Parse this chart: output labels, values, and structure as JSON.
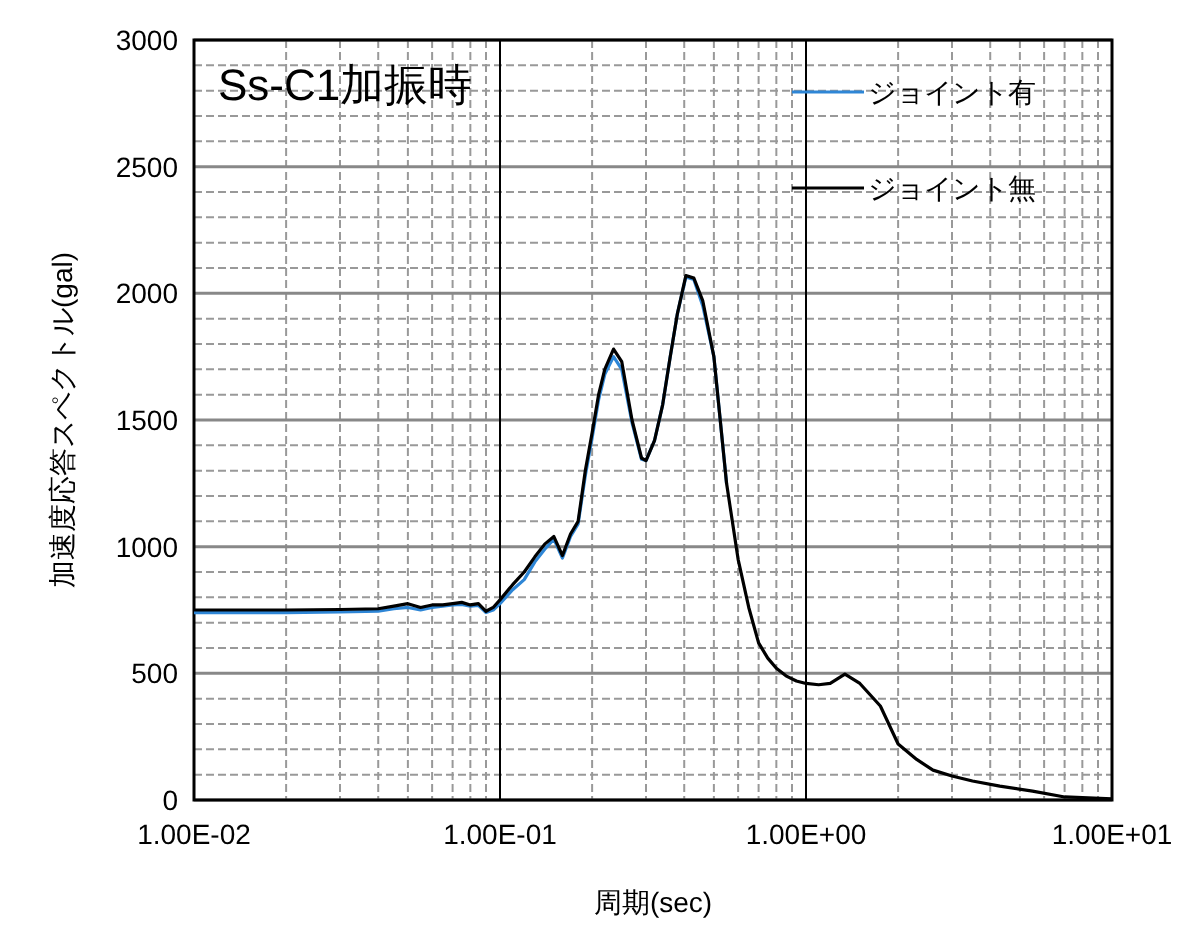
{
  "chart_data": {
    "type": "line",
    "title": "Ss-C1加振時",
    "xlabel": "周期(sec)",
    "ylabel": "加速度応答スペクトル(gal)",
    "log": "x",
    "grid": true,
    "legend": "top right",
    "xlim": [
      0.01,
      10
    ],
    "xticks": [
      {
        "value": 0.01,
        "label": "1.00E-02"
      },
      {
        "value": 0.1,
        "label": "1.00E-01"
      },
      {
        "value": 1,
        "label": "1.00E+00"
      },
      {
        "value": 10,
        "label": "1.00E+01"
      }
    ],
    "ylim": [
      0,
      3000
    ],
    "yticks": [
      0,
      500,
      1000,
      1500,
      2000,
      2500,
      3000
    ],
    "x": [
      0.01,
      0.02,
      0.03,
      0.04,
      0.045,
      0.05,
      0.055,
      0.06,
      0.065,
      0.07,
      0.075,
      0.08,
      0.085,
      0.09,
      0.095,
      0.1,
      0.11,
      0.12,
      0.13,
      0.14,
      0.15,
      0.16,
      0.17,
      0.18,
      0.19,
      0.2,
      0.21,
      0.22,
      0.235,
      0.25,
      0.27,
      0.29,
      0.3,
      0.32,
      0.34,
      0.36,
      0.38,
      0.405,
      0.43,
      0.46,
      0.5,
      0.55,
      0.6,
      0.65,
      0.7,
      0.75,
      0.8,
      0.86,
      0.93,
      1.0,
      1.1,
      1.2,
      1.34,
      1.5,
      1.75,
      2.0,
      2.3,
      2.6,
      3.0,
      3.5,
      4.3,
      5.5,
      7.0,
      10.0
    ],
    "series": [
      {
        "name": "ジョイント有",
        "color": "#2e86d6",
        "values": [
          740,
          740,
          742,
          745,
          755,
          760,
          750,
          760,
          765,
          770,
          772,
          765,
          768,
          740,
          750,
          775,
          830,
          870,
          940,
          990,
          1030,
          955,
          1040,
          1090,
          1280,
          1430,
          1580,
          1680,
          1750,
          1700,
          1490,
          1345,
          1340,
          1420,
          1560,
          1750,
          1920,
          2065,
          2055,
          1950,
          1750,
          1250,
          null,
          null,
          null,
          null,
          null,
          null,
          null,
          null,
          null,
          null,
          null,
          null,
          null,
          null,
          null,
          null,
          null,
          null,
          null,
          null,
          null,
          null
        ]
      },
      {
        "name": "ジョイント無",
        "color": "#000000",
        "values": [
          750,
          750,
          752,
          755,
          765,
          775,
          760,
          770,
          770,
          775,
          780,
          770,
          775,
          745,
          760,
          790,
          850,
          900,
          960,
          1010,
          1040,
          965,
          1050,
          1100,
          1300,
          1450,
          1600,
          1700,
          1780,
          1730,
          1500,
          1350,
          1340,
          1420,
          1560,
          1750,
          1920,
          2070,
          2060,
          1970,
          1750,
          1250,
          950,
          760,
          620,
          560,
          520,
          490,
          470,
          460,
          455,
          460,
          497,
          460,
          371,
          221,
          160,
          118,
          95,
          75,
          55,
          35,
          12,
          5
        ]
      }
    ]
  }
}
